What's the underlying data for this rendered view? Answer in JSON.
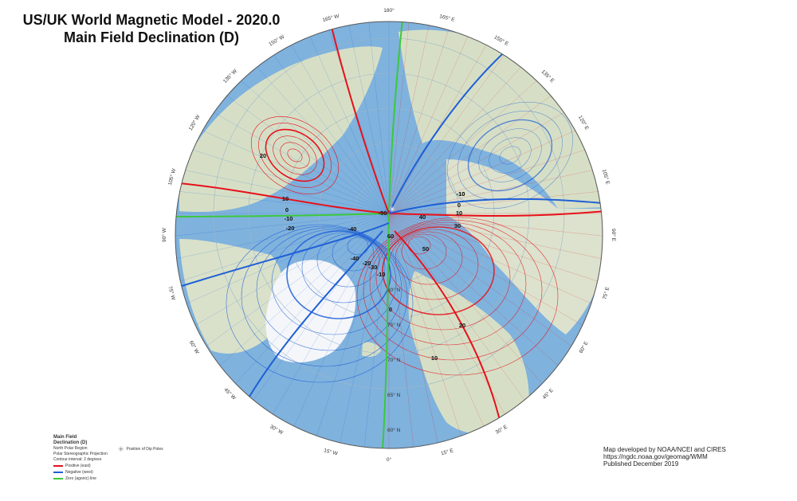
{
  "title": {
    "line1": "US/UK World Magnetic Model - 2020.0",
    "line2": "Main Field Declination (D)"
  },
  "legend": {
    "title_line1": "Main Field",
    "title_line2": "Declination (D)",
    "region": "North Polar Region",
    "projection": "Polar Stereographic Projection",
    "interval": "Contour interval: 2 degrees",
    "positive": "Positive (east)",
    "negative": "Negative (west)",
    "zero": "Zero (agonic) line",
    "dip_poles": "Position of Dip Poles"
  },
  "credits": {
    "line1": "Map developed by NOAA/NCEI and CIRES",
    "line2": "https://ngdc.noaa.gov/geomag/WMM",
    "line3": "Published December 2019"
  },
  "colors": {
    "positive": "#e8101a",
    "negative": "#1f5fd6",
    "zero": "#3cc83c",
    "ocean": "#7fb2dd",
    "land": "#d6dfc6",
    "ice": "#f4f6fa"
  },
  "longitude_labels": [
    "180°",
    "165° E",
    "150° E",
    "135° E",
    "120° E",
    "105° E",
    "90° E",
    "75° E",
    "60° E",
    "45° E",
    "30° E",
    "15° E",
    "0°",
    "15° W",
    "30° W",
    "45° W",
    "60° W",
    "75° W",
    "90° W",
    "105° W",
    "120° W",
    "135° W",
    "150° W",
    "165° W"
  ],
  "latitude_labels": [
    "80° N",
    "75° N",
    "70° N",
    "65° N",
    "60° N"
  ],
  "contour_labels": {
    "neg10_nw": "-10",
    "neg10_ne": "-10",
    "neg10_w": "-10",
    "neg20_w": "-20",
    "pos20_nw": "20",
    "pos10_nw": "10",
    "zero_w": "0",
    "zero_ne": "0",
    "pos10_ne": "10",
    "pos40": "40",
    "pos30": "30",
    "pos50": "50",
    "pos20_se": "20",
    "pos10_s": "10",
    "zero_s": "0",
    "neg50": "-50",
    "neg40": "-40",
    "neg40b": "-40",
    "neg30": "-30",
    "neg20": "-20",
    "neg10_s": "-10",
    "pos60": "60"
  }
}
